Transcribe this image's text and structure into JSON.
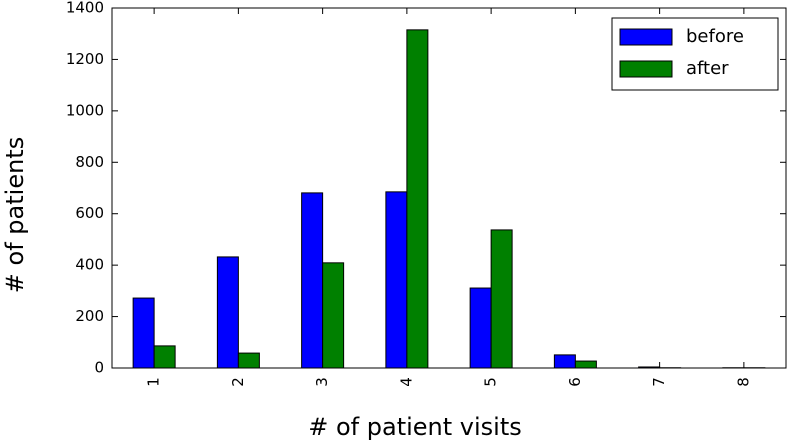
{
  "chart_data": {
    "type": "bar",
    "x_label": "#   of patient visits",
    "y_label": "#   of patients",
    "categories": [
      "1",
      "2",
      "3",
      "4",
      "5",
      "6",
      "7",
      "8"
    ],
    "series": [
      {
        "name": "before",
        "color": "#0000ff",
        "values": [
          272,
          432,
          681,
          685,
          311,
          51,
          4,
          1
        ]
      },
      {
        "name": "after",
        "color": "#008000",
        "values": [
          86,
          58,
          409,
          1315,
          537,
          27,
          1,
          1
        ]
      }
    ],
    "ylim": [
      0,
      1400
    ],
    "yticks": [
      0,
      200,
      400,
      600,
      800,
      1000,
      1200,
      1400
    ],
    "legend": "upper right"
  }
}
